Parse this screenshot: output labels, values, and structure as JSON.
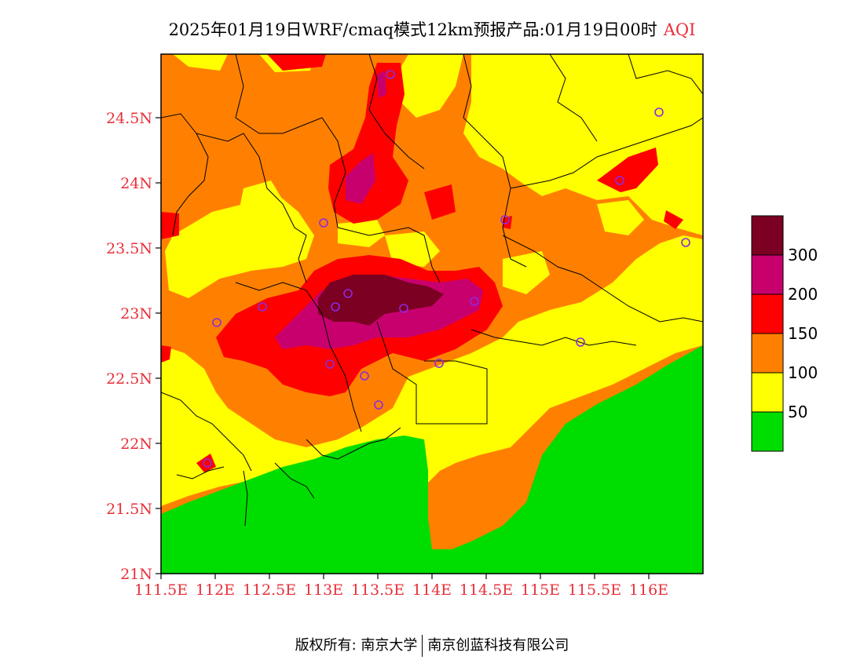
{
  "title": {
    "main": "2025年01月19日WRF/cmaq模式12km预报产品:01月19日00时",
    "variable": "AQI"
  },
  "axes": {
    "y_ticks": [
      "21N",
      "21.5N",
      "22N",
      "22.5N",
      "23N",
      "23.5N",
      "24N",
      "24.5N"
    ],
    "x_ticks": [
      "111.5E",
      "112E",
      "112.5E",
      "113E",
      "113.5E",
      "114E",
      "114.5E",
      "115E",
      "115.5E",
      "116E"
    ]
  },
  "legend": {
    "levels": [
      {
        "label": "50",
        "color": "#00dd00"
      },
      {
        "label": "100",
        "color": "#ffff00"
      },
      {
        "label": "150",
        "color": "#ff8000"
      },
      {
        "label": "200",
        "color": "#ff0000"
      },
      {
        "label": "300",
        "color": "#c8006e"
      },
      {
        "label": "",
        "color": "#7b0022"
      }
    ]
  },
  "colors": {
    "tick_label": "#e8303a",
    "station_marker": "#8a2be2"
  },
  "footer": {
    "left": "版权所有: 南京大学",
    "right": "南京创蓝科技有限公司"
  }
}
